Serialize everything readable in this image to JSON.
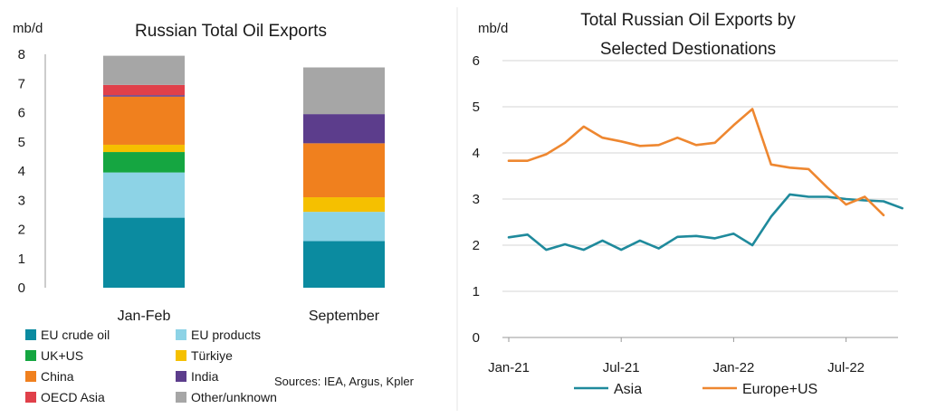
{
  "chart_data": [
    {
      "type": "bar",
      "stacked": true,
      "title": "Russian Total Oil Exports",
      "unit_label": "mb/d",
      "ylim": [
        0,
        8
      ],
      "yticks": [
        "0",
        "1",
        "2",
        "3",
        "4",
        "5",
        "6",
        "7",
        "8"
      ],
      "categories": [
        "Jan-Feb",
        "September"
      ],
      "series": [
        {
          "name": "EU crude oil",
          "color": "#0b8ba0",
          "values": [
            2.4,
            1.6
          ]
        },
        {
          "name": "EU products",
          "color": "#8dd3e6",
          "values": [
            1.55,
            1.0
          ]
        },
        {
          "name": "UK+US",
          "color": "#15a641",
          "values": [
            0.7,
            0.0
          ]
        },
        {
          "name": "Türkiye",
          "color": "#f5c000",
          "values": [
            0.25,
            0.5
          ]
        },
        {
          "name": "China",
          "color": "#f0801e",
          "values": [
            1.65,
            1.85
          ]
        },
        {
          "name": "India",
          "color": "#5c3d8c",
          "values": [
            0.05,
            1.0
          ]
        },
        {
          "name": "OECD Asia",
          "color": "#e0404a",
          "values": [
            0.35,
            0.0
          ]
        },
        {
          "name": "Other/unknown",
          "color": "#a6a6a6",
          "values": [
            1.0,
            1.6
          ]
        }
      ],
      "legend_placement": "bottom",
      "grid": false,
      "source": "Sources: IEA, Argus, Kpler"
    },
    {
      "type": "line",
      "title_lines": [
        "Total Russian Oil Exports by",
        "Selected Destionations"
      ],
      "unit_label": "mb/d",
      "ylim": [
        0,
        6
      ],
      "yticks": [
        "0",
        "1",
        "2",
        "3",
        "4",
        "5",
        "6"
      ],
      "xtick_labels": [
        "Jan-21",
        "Jul-21",
        "Jan-22",
        "Jul-22"
      ],
      "x": [
        "2021-01",
        "2021-02",
        "2021-03",
        "2021-04",
        "2021-05",
        "2021-06",
        "2021-07",
        "2021-08",
        "2021-09",
        "2021-10",
        "2021-11",
        "2021-12",
        "2022-01",
        "2022-02",
        "2022-03",
        "2022-04",
        "2022-05",
        "2022-06",
        "2022-07",
        "2022-08",
        "2022-09",
        "2022-10"
      ],
      "series": [
        {
          "name": "Asia",
          "color": "#1f8a9c",
          "values": [
            2.17,
            2.23,
            1.9,
            2.02,
            1.9,
            2.1,
            1.9,
            2.1,
            1.93,
            2.18,
            2.2,
            2.15,
            2.25,
            2.0,
            2.62,
            3.1,
            3.05,
            3.05,
            3.0,
            2.97,
            2.95,
            2.8
          ]
        },
        {
          "name": "Europe+US",
          "color": "#ee8730",
          "values": [
            3.83,
            3.83,
            3.97,
            4.22,
            4.57,
            4.33,
            4.25,
            4.15,
            4.17,
            4.33,
            4.17,
            4.22,
            4.6,
            4.95,
            3.75,
            3.68,
            3.65,
            3.25,
            2.88,
            3.05,
            2.65,
            null
          ]
        }
      ],
      "legend_placement": "bottom",
      "grid": true
    }
  ]
}
